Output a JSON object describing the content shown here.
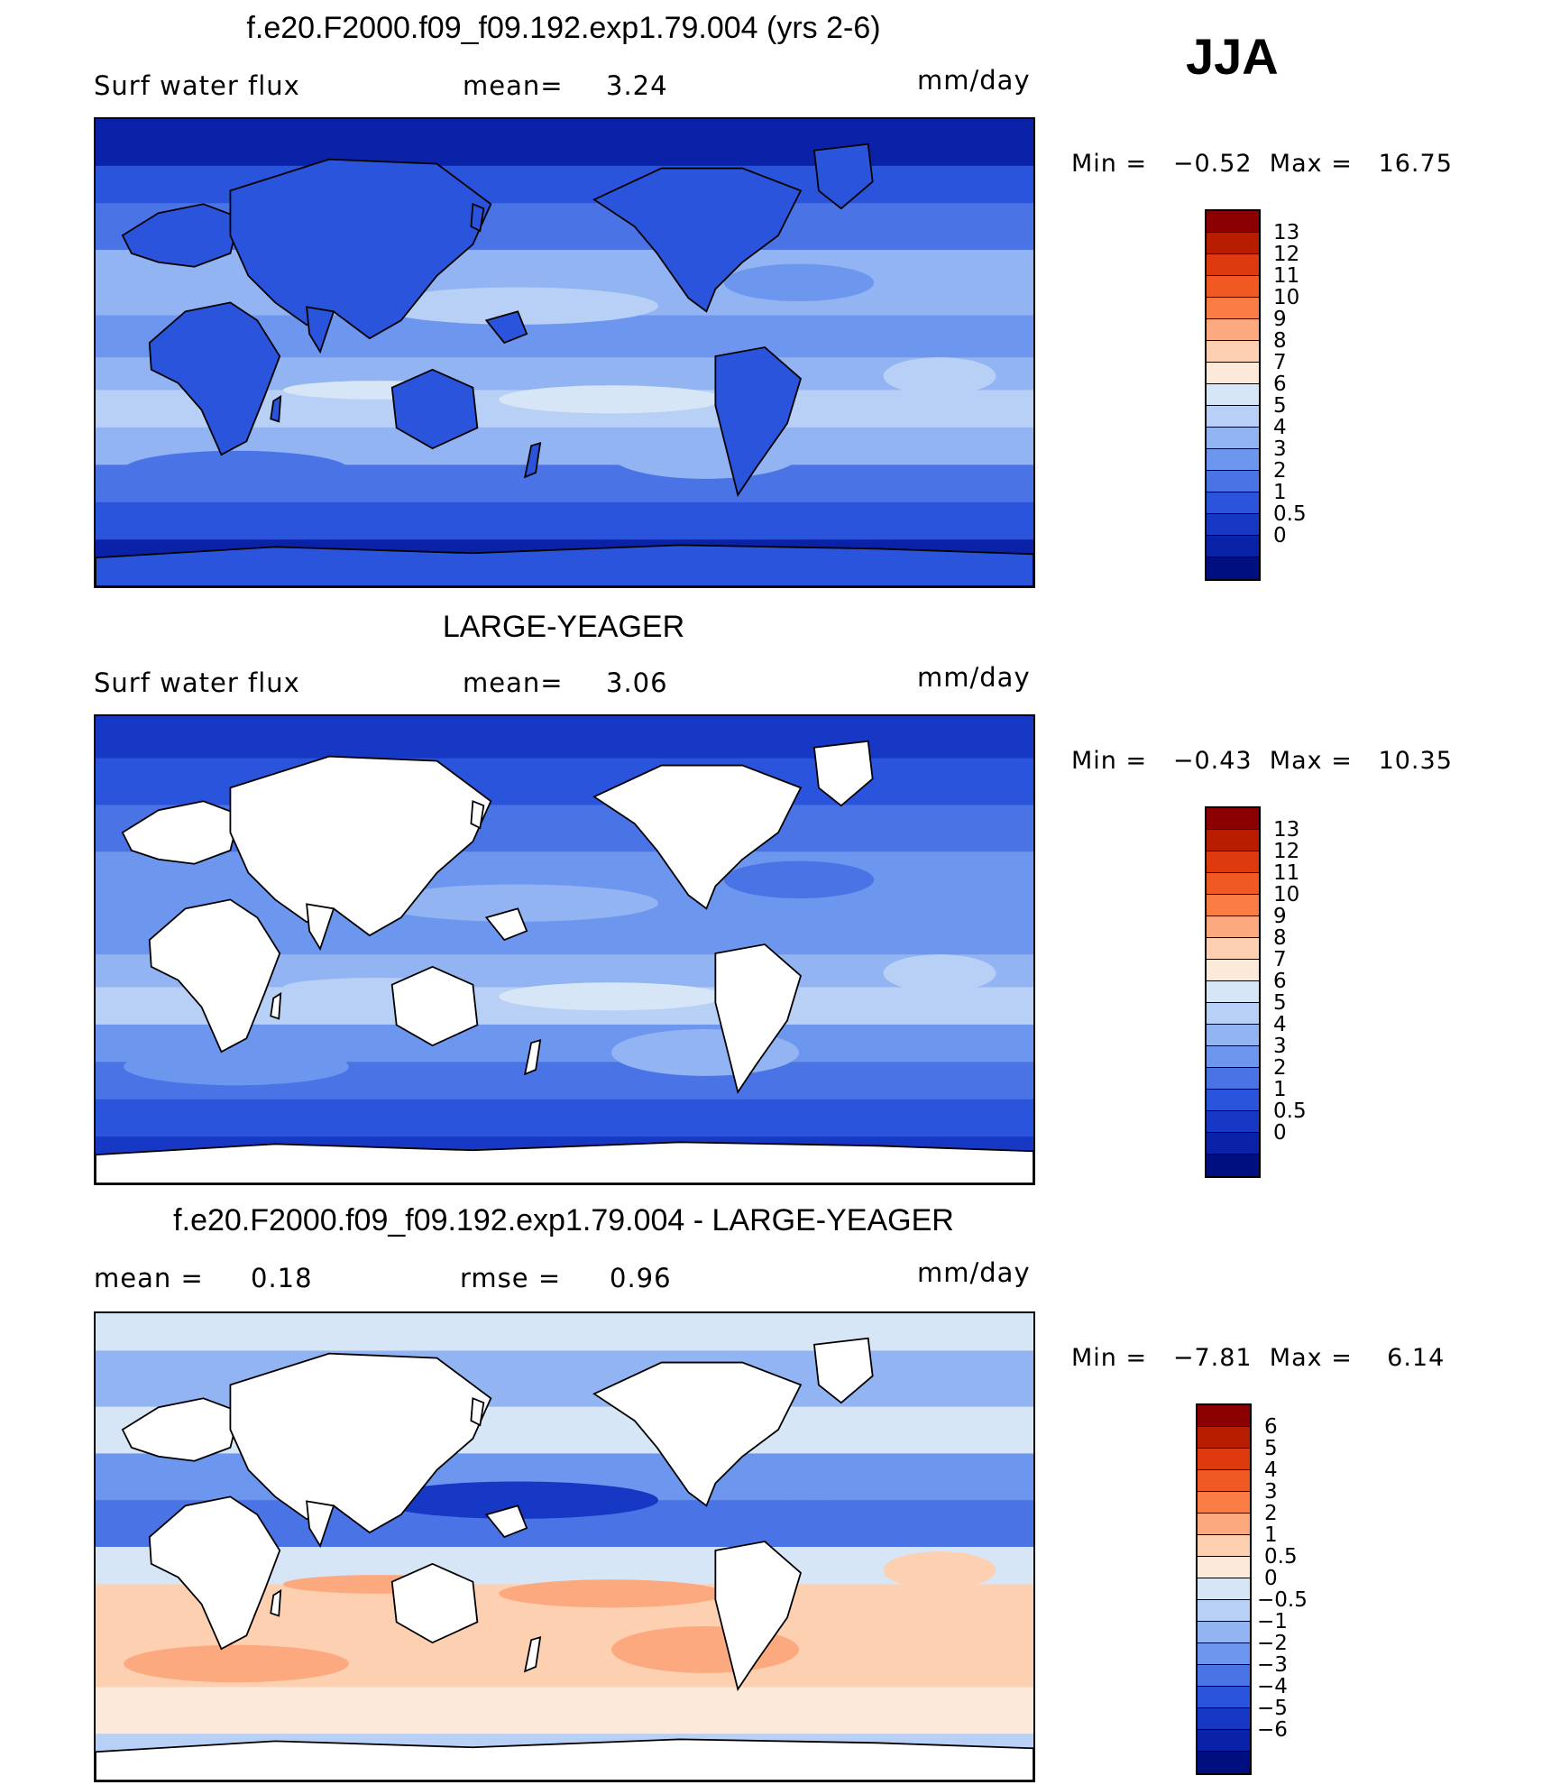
{
  "season": "JJA",
  "panels": [
    {
      "title": "f.e20.F2000.f09_f09.192.exp1.79.004 (yrs 2-6)",
      "left_label": "Surf water flux",
      "mid_label": "mean=",
      "mid_value": "3.24",
      "right_label": "",
      "right_value": "",
      "units": "mm/day",
      "min_label": "Min =",
      "min_value": "−0.52",
      "max_label": "Max =",
      "max_value": "16.75",
      "land": "filled",
      "scheme": "abs",
      "bands": [
        {
          "y": 0.0,
          "h": 0.1,
          "v": 0.3
        },
        {
          "y": 0.1,
          "h": 0.08,
          "v": 1.5
        },
        {
          "y": 0.18,
          "h": 0.1,
          "v": 2.5
        },
        {
          "y": 0.28,
          "h": 0.14,
          "v": 4.2
        },
        {
          "y": 0.42,
          "h": 0.09,
          "v": 3.2
        },
        {
          "y": 0.51,
          "h": 0.07,
          "v": 4.8
        },
        {
          "y": 0.58,
          "h": 0.08,
          "v": 5.6
        },
        {
          "y": 0.66,
          "h": 0.08,
          "v": 4.0
        },
        {
          "y": 0.74,
          "h": 0.08,
          "v": 2.3
        },
        {
          "y": 0.82,
          "h": 0.08,
          "v": 1.2
        },
        {
          "y": 0.9,
          "h": 0.1,
          "v": 0.2
        }
      ],
      "land_value": 1.5,
      "colorbar": {
        "colors": [
          "#8b0000",
          "#b81d00",
          "#dd3a10",
          "#f05a22",
          "#fa7d45",
          "#fca97f",
          "#fdd0b2",
          "#fde9da",
          "#d6e6f7",
          "#b8d0f5",
          "#92b4f2",
          "#6d96ee",
          "#4a74e6",
          "#2a54db",
          "#1638c4",
          "#0a22a8",
          "#000f80"
        ],
        "labels": [
          "13",
          "12",
          "11",
          "10",
          "9",
          "8",
          "7",
          "6",
          "5",
          "4",
          "3",
          "2",
          "1",
          "0.5",
          "0"
        ]
      }
    },
    {
      "title": "LARGE-YEAGER",
      "left_label": "Surf water flux",
      "mid_label": "mean=",
      "mid_value": "3.06",
      "right_label": "",
      "right_value": "",
      "units": "mm/day",
      "min_label": "Min =",
      "min_value": "−0.43",
      "max_label": "Max =",
      "max_value": "10.35",
      "land": "white",
      "scheme": "abs",
      "bands": [
        {
          "y": 0.0,
          "h": 0.09,
          "v": 0.6
        },
        {
          "y": 0.09,
          "h": 0.1,
          "v": 1.5
        },
        {
          "y": 0.19,
          "h": 0.1,
          "v": 2.6
        },
        {
          "y": 0.29,
          "h": 0.14,
          "v": 3.6
        },
        {
          "y": 0.43,
          "h": 0.08,
          "v": 3.0
        },
        {
          "y": 0.51,
          "h": 0.07,
          "v": 4.4
        },
        {
          "y": 0.58,
          "h": 0.08,
          "v": 5.2
        },
        {
          "y": 0.66,
          "h": 0.08,
          "v": 3.8
        },
        {
          "y": 0.74,
          "h": 0.08,
          "v": 2.6
        },
        {
          "y": 0.82,
          "h": 0.08,
          "v": 1.6
        },
        {
          "y": 0.9,
          "h": 0.1,
          "v": 0.6
        }
      ],
      "colorbar": {
        "colors": [
          "#8b0000",
          "#b81d00",
          "#dd3a10",
          "#f05a22",
          "#fa7d45",
          "#fca97f",
          "#fdd0b2",
          "#fde9da",
          "#d6e6f7",
          "#b8d0f5",
          "#92b4f2",
          "#6d96ee",
          "#4a74e6",
          "#2a54db",
          "#1638c4",
          "#0a22a8",
          "#000f80"
        ],
        "labels": [
          "13",
          "12",
          "11",
          "10",
          "9",
          "8",
          "7",
          "6",
          "5",
          "4",
          "3",
          "2",
          "1",
          "0.5",
          "0"
        ]
      }
    },
    {
      "title": "f.e20.F2000.f09_f09.192.exp1.79.004 - LARGE-YEAGER",
      "left_label": "mean =",
      "left_value": "0.18",
      "mid_label": "rmse =",
      "mid_value": "0.96",
      "right_label": "",
      "right_value": "",
      "units": "mm/day",
      "min_label": "Min =",
      "min_value": "−7.81",
      "max_label": "Max =",
      "max_value": "6.14",
      "land": "white",
      "scheme": "diff",
      "bands": [
        {
          "y": 0.0,
          "h": 0.08,
          "v": 0.2
        },
        {
          "y": 0.08,
          "h": 0.12,
          "v": -0.6
        },
        {
          "y": 0.2,
          "h": 0.1,
          "v": 0.4
        },
        {
          "y": 0.3,
          "h": 0.1,
          "v": -1.2
        },
        {
          "y": 0.4,
          "h": 0.1,
          "v": -2.2
        },
        {
          "y": 0.5,
          "h": 0.08,
          "v": 0.3
        },
        {
          "y": 0.58,
          "h": 0.1,
          "v": 1.2
        },
        {
          "y": 0.68,
          "h": 0.12,
          "v": 1.8
        },
        {
          "y": 0.8,
          "h": 0.1,
          "v": 0.7
        },
        {
          "y": 0.9,
          "h": 0.1,
          "v": -0.3
        }
      ],
      "colorbar": {
        "colors": [
          "#8b0000",
          "#b81d00",
          "#dd3a10",
          "#f05a22",
          "#fa7d45",
          "#fca97f",
          "#fdd0b2",
          "#fde9da",
          "#d6e6f7",
          "#b8d0f5",
          "#92b4f2",
          "#6d96ee",
          "#4a74e6",
          "#2a54db",
          "#1638c4",
          "#0a22a8",
          "#000f80"
        ],
        "labels": [
          "6",
          "5",
          "4",
          "3",
          "2",
          "1",
          "0.5",
          "0",
          "−0.5",
          "−1",
          "−2",
          "−3",
          "−4",
          "−5",
          "−6"
        ]
      }
    }
  ]
}
